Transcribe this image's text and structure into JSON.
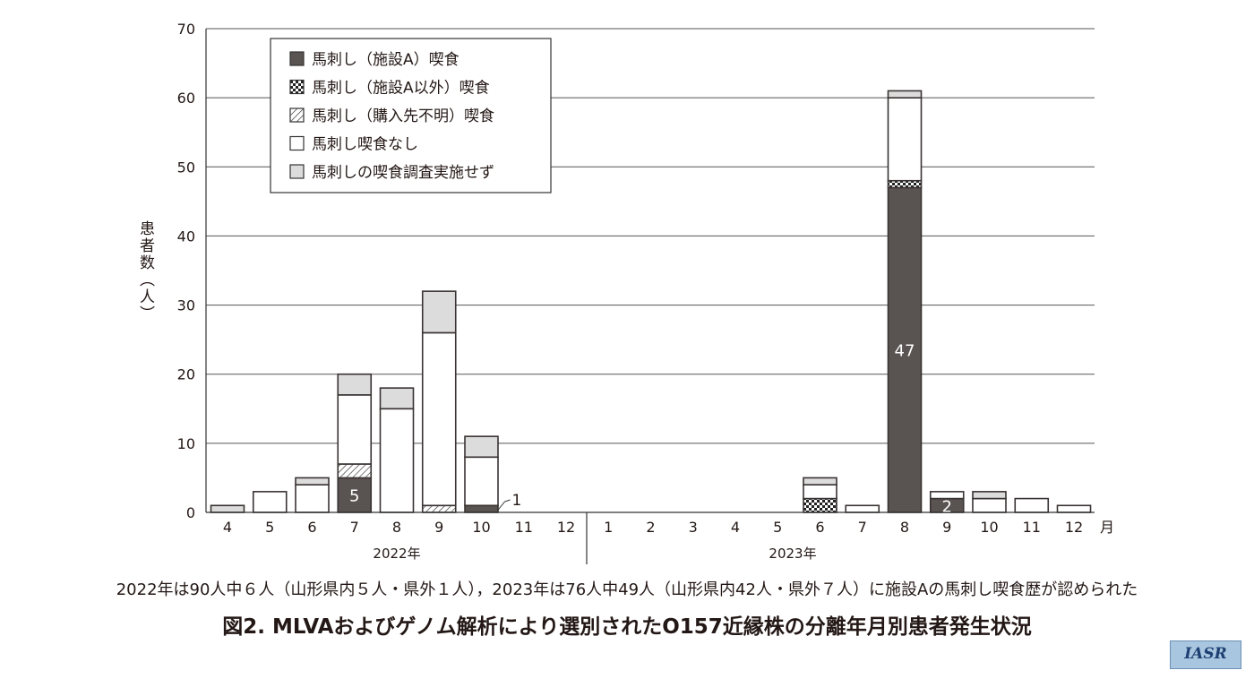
{
  "chart_data": {
    "type": "bar",
    "stacked": true,
    "ylabel": "患者数（人）",
    "xunit": "月",
    "ylim": [
      0,
      70
    ],
    "yticks": [
      0,
      10,
      20,
      30,
      40,
      50,
      60,
      70
    ],
    "years": [
      "2022年",
      "2023年"
    ],
    "categories": [
      "4",
      "5",
      "6",
      "7",
      "8",
      "9",
      "10",
      "11",
      "12",
      "1",
      "2",
      "3",
      "4",
      "5",
      "6",
      "7",
      "8",
      "9",
      "10",
      "11",
      "12"
    ],
    "series": [
      {
        "name": "馬刺し（施設A）喫食",
        "fill": "#595351",
        "values": [
          0,
          0,
          0,
          5,
          0,
          0,
          1,
          0,
          0,
          0,
          0,
          0,
          0,
          0,
          0,
          0,
          47,
          2,
          0,
          0,
          0
        ]
      },
      {
        "name": "馬刺し（施設A以外）喫食",
        "fill": "checker",
        "values": [
          0,
          0,
          0,
          0,
          0,
          0,
          0,
          0,
          0,
          0,
          0,
          0,
          0,
          0,
          2,
          0,
          1,
          0,
          0,
          0,
          0
        ]
      },
      {
        "name": "馬刺し（購入先不明）喫食",
        "fill": "hatch",
        "values": [
          0,
          0,
          0,
          2,
          0,
          1,
          0,
          0,
          0,
          0,
          0,
          0,
          0,
          0,
          0,
          0,
          0,
          0,
          0,
          0,
          0
        ]
      },
      {
        "name": "馬刺し喫食なし",
        "fill": "#ffffff",
        "values": [
          0,
          3,
          4,
          10,
          15,
          25,
          7,
          0,
          0,
          0,
          0,
          0,
          0,
          0,
          2,
          1,
          12,
          1,
          2,
          2,
          1
        ]
      },
      {
        "name": "馬刺しの喫食調査実施せず",
        "fill": "#dcdcdc",
        "values": [
          1,
          0,
          1,
          3,
          3,
          6,
          3,
          0,
          0,
          0,
          0,
          0,
          0,
          0,
          1,
          0,
          1,
          0,
          1,
          0,
          0
        ]
      }
    ],
    "data_labels": [
      {
        "index": 3,
        "text": "5"
      },
      {
        "index": 16,
        "text": "47"
      },
      {
        "index": 17,
        "text": "2"
      }
    ],
    "annotations": [
      {
        "index": 6,
        "text": "1"
      }
    ],
    "legend": "top-left"
  },
  "note": "2022年は90人中６人（山形県内５人・県外１人），2023年は76人中49人（山形県内42人・県外７人）に施設Aの馬刺し喫食歴が認められた",
  "title": "図2. MLVAおよびゲノム解析により選別されたO157近縁株の分離年月別患者発生状況",
  "logo": "IASR"
}
